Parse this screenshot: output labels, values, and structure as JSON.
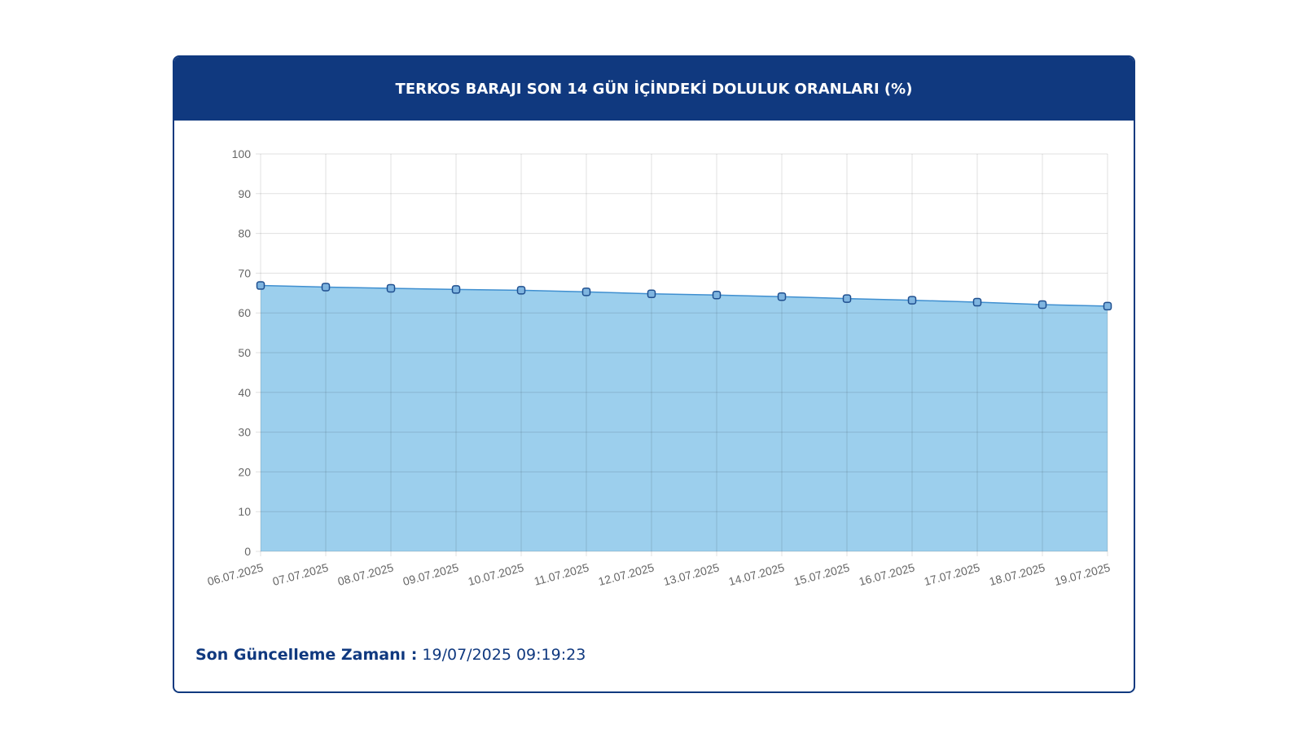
{
  "panel": {
    "title": "TERKOS BARAJI SON 14 GÜN İÇİNDEKİ DOLULUK ORANLARI (%)",
    "update_label": "Son Güncelleme Zamanı :",
    "update_value": "19/07/2025 09:19:23"
  },
  "colors": {
    "header_bg": "#10397f",
    "line": "#3f8fd0",
    "fill": "#9ccfed",
    "point_fill": "#7fb5e0",
    "point_stroke": "#1f4f8f"
  },
  "chart_data": {
    "type": "area",
    "title": "",
    "xlabel": "",
    "ylabel": "",
    "ylim": [
      0,
      100
    ],
    "yticks": [
      "0",
      "10",
      "20",
      "30",
      "40",
      "50",
      "60",
      "70",
      "80",
      "90",
      "100"
    ],
    "grid": true,
    "legend": "none",
    "categories": [
      "06.07.2025",
      "07.07.2025",
      "08.07.2025",
      "09.07.2025",
      "10.07.2025",
      "11.07.2025",
      "12.07.2025",
      "13.07.2025",
      "14.07.2025",
      "15.07.2025",
      "16.07.2025",
      "17.07.2025",
      "18.07.2025",
      "19.07.2025"
    ],
    "values": [
      66.9,
      66.5,
      66.2,
      65.9,
      65.7,
      65.3,
      64.8,
      64.5,
      64.1,
      63.6,
      63.2,
      62.7,
      62.1,
      61.7
    ]
  }
}
